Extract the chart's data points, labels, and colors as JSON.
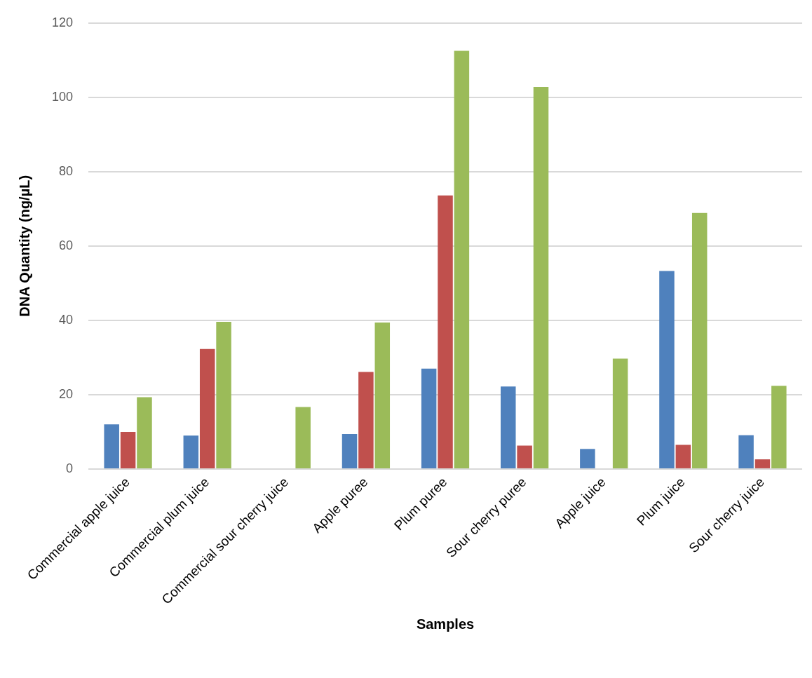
{
  "chart_data": {
    "type": "bar",
    "xlabel": "Samples",
    "ylabel": "DNA Quantity (ng/µL)",
    "categories": [
      "Commercial apple juice",
      "Commercial plum juice",
      "Commercial sour cherry juice",
      "Apple puree",
      "Plum puree",
      "Sour cherry puree",
      "Apple juice",
      "Plum juice",
      "Sour cherry juice"
    ],
    "series": [
      {
        "color": "#4f81bd",
        "values": [
          12,
          9,
          0,
          9.4,
          27,
          22.2,
          5.4,
          53.3,
          9.1
        ]
      },
      {
        "color": "#c0504d",
        "values": [
          10,
          32.3,
          0,
          26.1,
          73.6,
          6.3,
          0,
          6.5,
          2.6
        ]
      },
      {
        "color": "#9bbb59",
        "values": [
          19.3,
          39.6,
          16.7,
          39.4,
          112.5,
          102.8,
          29.7,
          68.9,
          22.4
        ]
      }
    ],
    "ylim": [
      0,
      120
    ],
    "yticks": [
      0,
      20,
      40,
      60,
      80,
      100,
      120
    ],
    "grid": "y",
    "legend": false
  }
}
